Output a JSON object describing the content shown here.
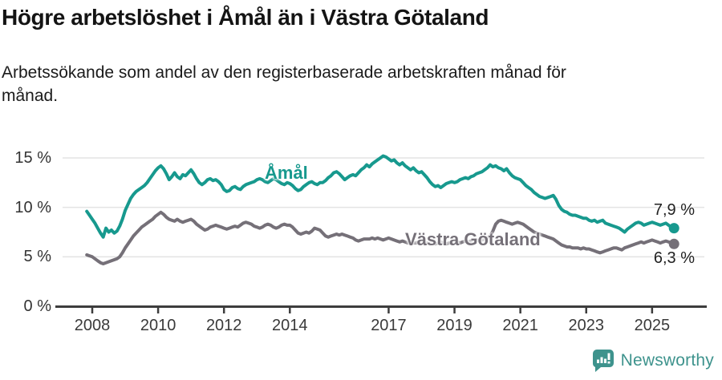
{
  "chart_data": {
    "type": "line",
    "title": "Högre arbetslöshet i Åmål än i Västra Götaland",
    "subtitle_line1": "Arbetssökande som andel av den registerbaserade arbetskraften månad för",
    "subtitle_line2": "månad.",
    "frequency": "monthly",
    "x_start": "2007-11",
    "x_end": "2025-09",
    "ylim": [
      0,
      16.2
    ],
    "grid": true,
    "legend": "inline-labels",
    "axis_color": "#3d3d3d",
    "grid_color": "#e3e3e3",
    "x_ticks": [
      {
        "v": 2008,
        "label": "2008"
      },
      {
        "v": 2010,
        "label": "2010"
      },
      {
        "v": 2012,
        "label": "2012"
      },
      {
        "v": 2014,
        "label": "2014"
      },
      {
        "v": 2017,
        "label": "2017"
      },
      {
        "v": 2019,
        "label": "2019"
      },
      {
        "v": 2021,
        "label": "2021"
      },
      {
        "v": 2023,
        "label": "2023"
      },
      {
        "v": 2025,
        "label": "2025"
      }
    ],
    "y_ticks": [
      {
        "v": 0,
        "label": "0 %"
      },
      {
        "v": 5,
        "label": "5 %"
      },
      {
        "v": 10,
        "label": "10 %"
      },
      {
        "v": 15,
        "label": "15 %"
      }
    ],
    "series": [
      {
        "name": "Åmål",
        "color": "#17998e",
        "end_label": "7,9 %",
        "end_value": 7.9,
        "values": [
          9.6,
          9.2,
          8.8,
          8.4,
          7.9,
          7.4,
          7.0,
          7.9,
          7.5,
          7.7,
          7.4,
          7.6,
          8.1,
          8.8,
          9.7,
          10.3,
          10.9,
          11.3,
          11.6,
          11.8,
          12.0,
          12.2,
          12.5,
          12.9,
          13.3,
          13.7,
          14.0,
          14.2,
          13.9,
          13.4,
          12.8,
          13.1,
          13.5,
          13.1,
          12.9,
          13.3,
          13.2,
          13.5,
          13.8,
          13.4,
          12.9,
          12.5,
          12.3,
          12.5,
          12.8,
          12.9,
          12.7,
          12.8,
          12.6,
          12.3,
          11.8,
          11.6,
          11.7,
          12.0,
          12.1,
          11.9,
          11.8,
          12.1,
          12.3,
          12.4,
          12.5,
          12.6,
          12.8,
          12.9,
          12.8,
          12.6,
          12.5,
          12.7,
          12.9,
          12.8,
          12.6,
          12.4,
          12.3,
          12.5,
          12.4,
          12.2,
          11.9,
          11.7,
          11.8,
          12.1,
          12.3,
          12.5,
          12.6,
          12.4,
          12.3,
          12.5,
          12.5,
          12.7,
          13.0,
          13.2,
          13.5,
          13.6,
          13.4,
          13.1,
          12.8,
          13.0,
          13.2,
          13.3,
          13.2,
          13.5,
          13.8,
          14.0,
          14.3,
          14.1,
          14.4,
          14.6,
          14.8,
          15.0,
          15.2,
          15.1,
          14.9,
          14.7,
          14.8,
          14.5,
          14.3,
          14.5,
          14.2,
          14.0,
          13.8,
          14.0,
          13.7,
          13.5,
          13.6,
          13.3,
          13.0,
          12.6,
          12.3,
          12.1,
          12.2,
          12.0,
          12.2,
          12.4,
          12.5,
          12.6,
          12.5,
          12.6,
          12.8,
          12.9,
          13.0,
          12.9,
          13.1,
          13.2,
          13.4,
          13.5,
          13.6,
          13.8,
          14.0,
          14.3,
          14.1,
          14.2,
          14.0,
          13.9,
          13.7,
          13.9,
          13.5,
          13.2,
          13.0,
          12.9,
          12.8,
          12.5,
          12.2,
          12.0,
          11.8,
          11.5,
          11.3,
          11.1,
          11.0,
          10.9,
          11.0,
          11.1,
          11.2,
          10.8,
          10.2,
          9.8,
          9.6,
          9.5,
          9.3,
          9.2,
          9.2,
          9.1,
          9.0,
          8.9,
          8.9,
          8.7,
          8.6,
          8.7,
          8.5,
          8.6,
          8.7,
          8.4,
          8.3,
          8.2,
          8.1,
          8.0,
          7.9,
          7.7,
          7.5,
          7.8,
          8.0,
          8.2,
          8.4,
          8.5,
          8.4,
          8.2,
          8.3,
          8.4,
          8.5,
          8.4,
          8.3,
          8.2,
          8.3,
          8.4,
          8.2,
          8.0,
          7.9
        ]
      },
      {
        "name": "Västra Götaland",
        "color": "#757078",
        "end_label": "6,3 %",
        "end_value": 6.3,
        "values": [
          5.2,
          5.1,
          5.0,
          4.8,
          4.6,
          4.4,
          4.3,
          4.4,
          4.5,
          4.6,
          4.7,
          4.8,
          5.0,
          5.4,
          5.9,
          6.3,
          6.7,
          7.1,
          7.4,
          7.7,
          8.0,
          8.2,
          8.4,
          8.6,
          8.8,
          9.1,
          9.3,
          9.5,
          9.3,
          9.0,
          8.8,
          8.7,
          8.6,
          8.8,
          8.6,
          8.5,
          8.6,
          8.7,
          8.8,
          8.6,
          8.3,
          8.1,
          7.9,
          7.7,
          7.8,
          8.0,
          8.1,
          8.2,
          8.1,
          8.0,
          7.9,
          7.8,
          7.9,
          8.0,
          8.1,
          8.0,
          8.2,
          8.4,
          8.5,
          8.4,
          8.3,
          8.1,
          8.0,
          7.9,
          8.0,
          8.2,
          8.3,
          8.2,
          8.0,
          7.9,
          8.0,
          8.2,
          8.3,
          8.2,
          8.2,
          8.0,
          7.7,
          7.4,
          7.3,
          7.4,
          7.5,
          7.4,
          7.6,
          7.9,
          7.8,
          7.7,
          7.4,
          7.1,
          7.0,
          7.1,
          7.2,
          7.3,
          7.2,
          7.3,
          7.2,
          7.1,
          7.0,
          6.9,
          6.7,
          6.6,
          6.7,
          6.8,
          6.8,
          6.8,
          6.9,
          6.8,
          6.9,
          6.8,
          6.7,
          6.8,
          6.9,
          6.8,
          6.7,
          6.6,
          6.5,
          6.6,
          6.5,
          6.4,
          6.5,
          6.4,
          6.4,
          6.5,
          6.4,
          6.3,
          6.4,
          6.3,
          6.4,
          6.3,
          6.4,
          6.5,
          6.4,
          6.3,
          6.4,
          6.4,
          6.4,
          6.5,
          6.4,
          6.5,
          6.6,
          6.5,
          6.6,
          6.6,
          6.7,
          6.6,
          6.7,
          6.8,
          6.9,
          7.1,
          7.6,
          8.3,
          8.6,
          8.7,
          8.6,
          8.5,
          8.4,
          8.3,
          8.4,
          8.5,
          8.4,
          8.3,
          8.1,
          7.9,
          7.7,
          7.5,
          7.4,
          7.3,
          7.2,
          7.1,
          7.0,
          6.9,
          6.8,
          6.6,
          6.4,
          6.2,
          6.1,
          6.0,
          6.0,
          5.9,
          5.9,
          5.9,
          5.8,
          5.9,
          5.8,
          5.8,
          5.7,
          5.6,
          5.5,
          5.4,
          5.5,
          5.6,
          5.7,
          5.8,
          5.9,
          5.9,
          5.8,
          5.7,
          5.9,
          6.0,
          6.1,
          6.2,
          6.3,
          6.4,
          6.5,
          6.4,
          6.5,
          6.6,
          6.7,
          6.6,
          6.5,
          6.4,
          6.5,
          6.6,
          6.5,
          6.4,
          6.3
        ]
      }
    ]
  },
  "footer": {
    "logo_text": "Newsworthy",
    "logo_color": "#3e938d"
  }
}
